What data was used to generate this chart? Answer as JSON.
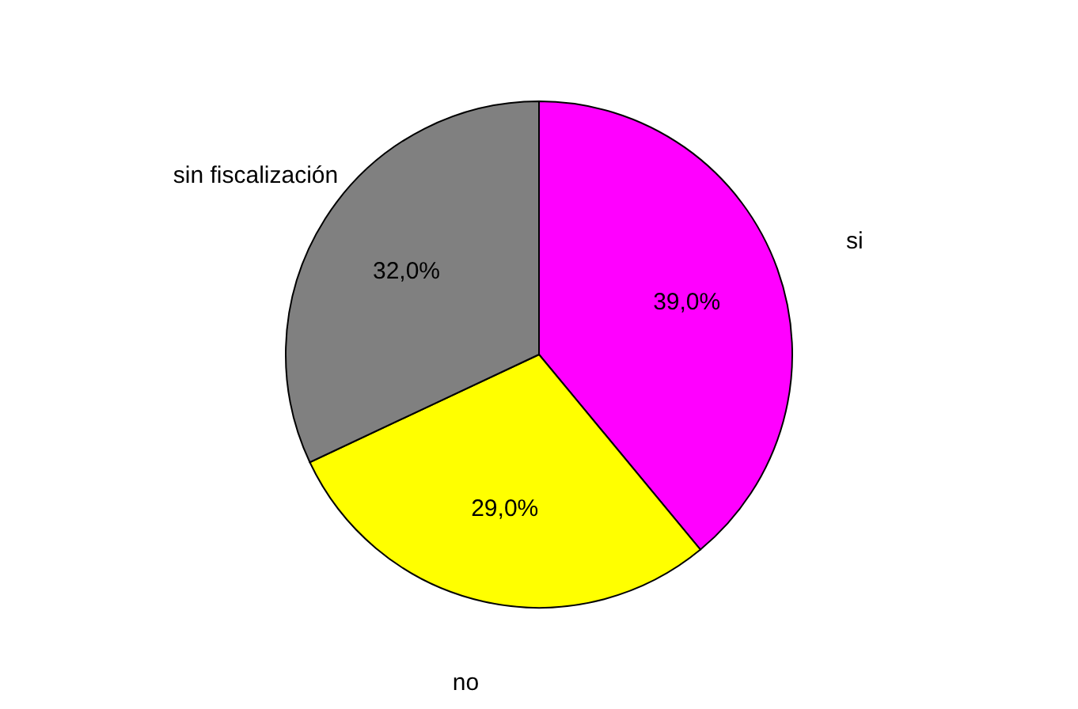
{
  "chart_data": {
    "type": "pie",
    "categories": [
      "si",
      "no",
      "sin fiscalización"
    ],
    "values": [
      39,
      29,
      32
    ],
    "colors": [
      "#ff00ff",
      "#ffff00",
      "#808080"
    ],
    "value_labels": [
      "39,0%",
      "29,0%",
      "32,0%"
    ],
    "legend": false
  }
}
